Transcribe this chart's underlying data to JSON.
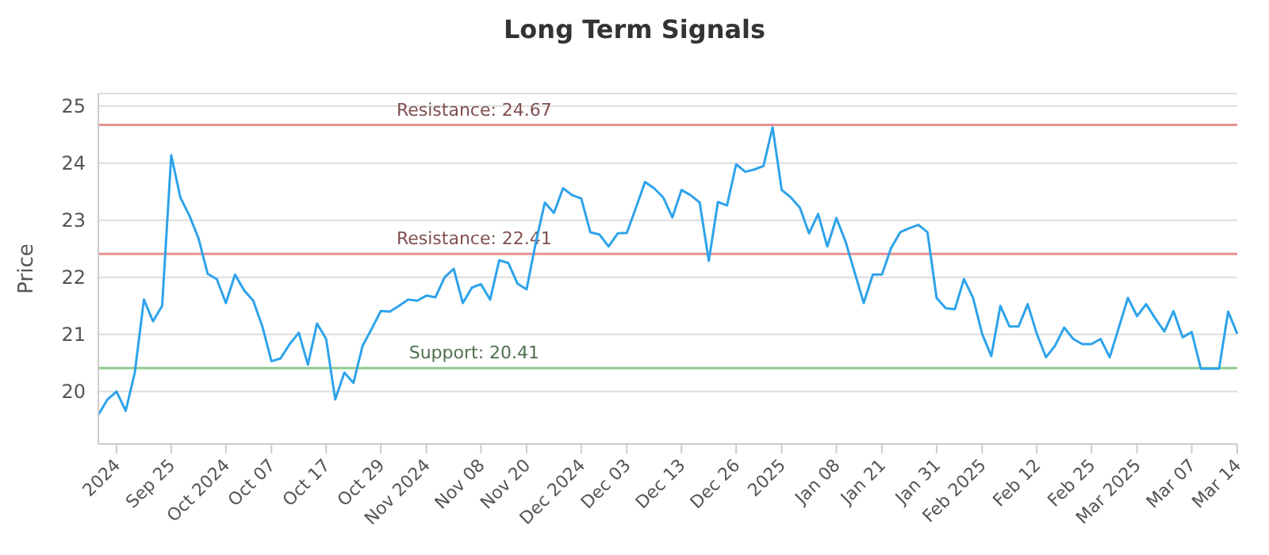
{
  "chart_data": {
    "type": "line",
    "title": "Long Term Signals",
    "ylabel": "Price",
    "categories": [
      null,
      null,
      "2024",
      null,
      null,
      null,
      null,
      null,
      "Sep 25",
      null,
      null,
      null,
      null,
      null,
      "Oct 2024",
      null,
      null,
      null,
      null,
      "Oct 07",
      null,
      null,
      null,
      null,
      null,
      "Oct 17",
      null,
      null,
      null,
      null,
      null,
      "Oct 29",
      null,
      null,
      null,
      null,
      "Nov 2024",
      null,
      null,
      null,
      null,
      null,
      "Nov 08",
      null,
      null,
      null,
      null,
      "Nov 20",
      null,
      null,
      null,
      null,
      null,
      "Dec 2024",
      null,
      null,
      null,
      null,
      "Dec 03",
      null,
      null,
      null,
      null,
      null,
      "Dec 13",
      null,
      null,
      null,
      null,
      null,
      "Dec 26",
      null,
      null,
      null,
      null,
      "2025",
      null,
      null,
      null,
      null,
      null,
      "Jan 08",
      null,
      null,
      null,
      null,
      "Jan 21",
      null,
      null,
      null,
      null,
      null,
      "Jan 31",
      null,
      null,
      null,
      null,
      "Feb 2025",
      null,
      null,
      null,
      null,
      null,
      "Feb 12",
      null,
      null,
      null,
      null,
      null,
      "Feb 25",
      null,
      null,
      null,
      null,
      "Mar 2025",
      null,
      null,
      null,
      null,
      null,
      "Mar 07",
      null,
      null,
      null,
      null,
      "Mar 14"
    ],
    "series": [
      {
        "color": "#2ea3ea",
        "values": [
          19.59,
          19.86,
          20.0,
          19.66,
          20.33,
          21.61,
          21.23,
          21.5,
          24.14,
          23.4,
          23.08,
          22.68,
          22.06,
          21.97,
          21.55,
          22.05,
          21.77,
          21.59,
          21.14,
          20.53,
          20.58,
          20.83,
          21.03,
          20.47,
          21.19,
          20.92,
          19.86,
          20.33,
          20.15,
          20.8,
          21.1,
          21.41,
          21.4,
          21.5,
          21.61,
          21.59,
          21.68,
          21.65,
          22.0,
          22.15,
          21.55,
          21.82,
          21.88,
          21.61,
          22.3,
          22.25,
          21.89,
          21.79,
          22.6,
          23.31,
          23.13,
          23.56,
          23.44,
          23.38,
          22.79,
          22.75,
          22.54,
          22.77,
          22.78,
          23.22,
          23.67,
          23.56,
          23.4,
          23.05,
          23.53,
          23.44,
          23.31,
          22.29,
          23.32,
          23.26,
          23.98,
          23.85,
          23.89,
          23.95,
          24.63,
          23.53,
          23.4,
          23.22,
          22.77,
          23.11,
          22.54,
          23.04,
          22.63,
          22.09,
          21.55,
          22.05,
          22.05,
          22.51,
          22.79,
          22.86,
          22.92,
          22.79,
          21.64,
          21.46,
          21.44,
          21.97,
          21.64,
          21.01,
          20.62,
          21.5,
          21.14,
          21.14,
          21.53,
          21.01,
          20.6,
          20.8,
          21.12,
          20.92,
          20.83,
          20.83,
          20.92,
          20.6,
          21.12,
          21.64,
          21.32,
          21.53,
          21.28,
          21.05,
          21.41,
          20.95,
          21.04,
          20.4,
          20.4,
          20.4,
          21.4,
          21.01
        ]
      }
    ],
    "ylim": [
      19.08,
      25.22
    ],
    "yticks": [
      20,
      21,
      22,
      23,
      24,
      25
    ],
    "grid": "y",
    "legend": false,
    "marker": "none",
    "line_style": "solid",
    "ref_lines": [
      {
        "axis": "y",
        "value": 24.67,
        "label": "Resistance: 24.67",
        "color": "#e89090"
      },
      {
        "axis": "y",
        "value": 22.41,
        "label": "Resistance: 22.41",
        "color": "#e89090"
      },
      {
        "axis": "y",
        "value": 20.41,
        "label": "Support: 20.41",
        "color": "#8fcc8f"
      }
    ]
  }
}
